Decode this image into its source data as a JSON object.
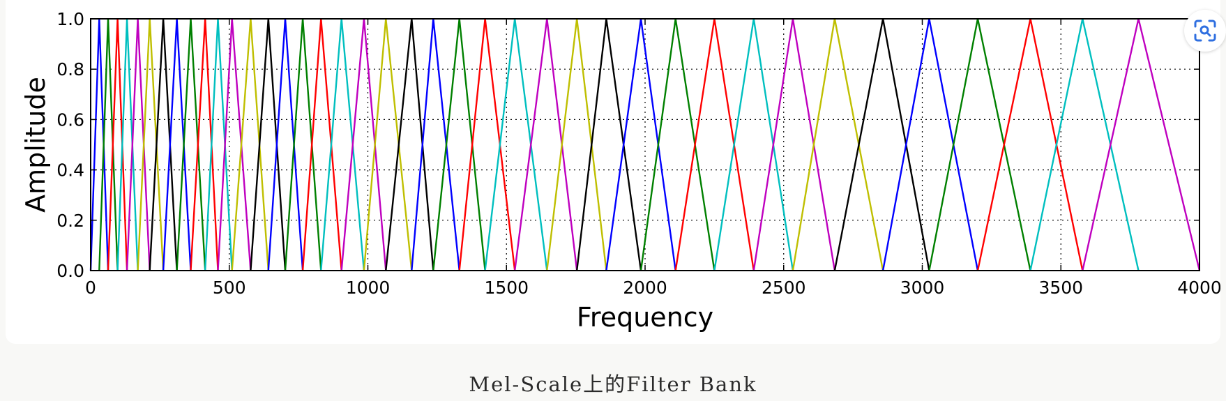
{
  "chart_data": {
    "type": "line",
    "title": "",
    "xlabel": "Frequency",
    "ylabel": "Amplitude",
    "xlim": [
      0,
      4000
    ],
    "ylim": [
      0,
      1.0
    ],
    "xticks": [
      0,
      500,
      1000,
      1500,
      2000,
      2500,
      3000,
      3500,
      4000
    ],
    "yticks": [
      0.0,
      0.2,
      0.4,
      0.6,
      0.8,
      1.0
    ],
    "ytick_labels": [
      "0.0",
      "0.2",
      "0.4",
      "0.6",
      "0.8",
      "1.0"
    ],
    "grid": true,
    "filter_points": [
      0,
      31,
      63,
      97,
      131,
      170,
      213,
      262,
      311,
      361,
      413,
      459,
      510,
      577,
      641,
      702,
      765,
      831,
      905,
      986,
      1065,
      1158,
      1236,
      1330,
      1423,
      1530,
      1646,
      1754,
      1860,
      1985,
      2110,
      2250,
      2392,
      2533,
      2684,
      2858,
      3025,
      3200,
      3390,
      3578,
      3780,
      4000
    ],
    "series_colors": [
      "#0000ff",
      "#008000",
      "#ff0000",
      "#00bfbf",
      "#bf00bf",
      "#bfbf00",
      "#000000"
    ]
  },
  "caption": "Mel-Scale上的Filter Bank",
  "lens_icon": "image-search-icon"
}
